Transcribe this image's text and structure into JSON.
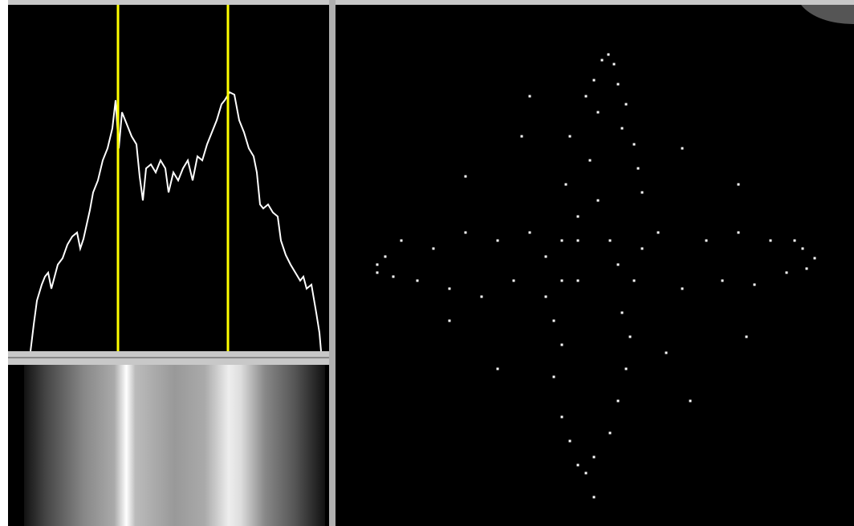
{
  "chart_data": [
    {
      "type": "line",
      "color": "#ffffff",
      "xlim": [
        0,
        400
      ],
      "ylim": [
        0,
        432
      ],
      "x": [
        28,
        32,
        36,
        42,
        46,
        50,
        54,
        58,
        62,
        68,
        74,
        80,
        86,
        90,
        94,
        98,
        102,
        106,
        112,
        118,
        124,
        130,
        134,
        138,
        142,
        148,
        154,
        160,
        164,
        168,
        172,
        178,
        184,
        190,
        196,
        200,
        206,
        212,
        218,
        224,
        230,
        236,
        242,
        248,
        254,
        260,
        266,
        270,
        276,
        282,
        288,
        294,
        300,
        306,
        310,
        314,
        318,
        324,
        330,
        336,
        340,
        346,
        352,
        358,
        364,
        368,
        372,
        378,
        384,
        388,
        390
      ],
      "values": [
        0,
        33,
        63,
        83,
        93,
        98,
        78,
        93,
        108,
        116,
        133,
        143,
        148,
        128,
        140,
        158,
        176,
        198,
        213,
        238,
        253,
        278,
        313,
        253,
        298,
        283,
        268,
        258,
        218,
        188,
        228,
        233,
        223,
        238,
        228,
        198,
        223,
        213,
        228,
        238,
        213,
        243,
        238,
        258,
        273,
        288,
        308,
        313,
        323,
        320,
        288,
        273,
        253,
        243,
        223,
        183,
        178,
        183,
        173,
        168,
        138,
        120,
        108,
        98,
        88,
        93,
        78,
        83,
        48,
        23,
        0
      ],
      "vlines": [
        137,
        274
      ],
      "vline_color": "#ffff00"
    },
    {
      "type": "scatter",
      "color": "#ffffff",
      "xlim": [
        0,
        646
      ],
      "ylim": [
        0,
        650
      ],
      "x": [
        340,
        332,
        347,
        322,
        352,
        312,
        362,
        327,
        357,
        292,
        372,
        317,
        377,
        287,
        382,
        327,
        302,
        52,
        62,
        72,
        82,
        102,
        122,
        142,
        162,
        182,
        202,
        222,
        242,
        262,
        282,
        302,
        342,
        372,
        402,
        432,
        462,
        482,
        502,
        522,
        542,
        562,
        582,
        597,
        587,
        572,
        52,
        312,
        302,
        322,
        292,
        342,
        282,
        352,
        272,
        362,
        282,
        367,
        272,
        357,
        322,
        242,
        432,
        162,
        502,
        202,
        442,
        232,
        412,
        142,
        512,
        282,
        352,
        382,
        262,
        302
      ],
      "values": [
        588,
        581,
        576,
        556,
        551,
        536,
        526,
        516,
        496,
        486,
        476,
        456,
        446,
        426,
        416,
        406,
        386,
        326,
        336,
        311,
        356,
        306,
        346,
        296,
        366,
        286,
        356,
        306,
        366,
        286,
        356,
        306,
        356,
        306,
        366,
        296,
        356,
        306,
        366,
        301,
        356,
        316,
        346,
        334,
        321,
        356,
        316,
        66,
        76,
        86,
        106,
        116,
        136,
        156,
        186,
        196,
        226,
        236,
        256,
        266,
        36,
        536,
        471,
        436,
        426,
        196,
        156,
        486,
        216,
        256,
        236,
        306,
        326,
        346,
        336,
        356
      ]
    }
  ]
}
